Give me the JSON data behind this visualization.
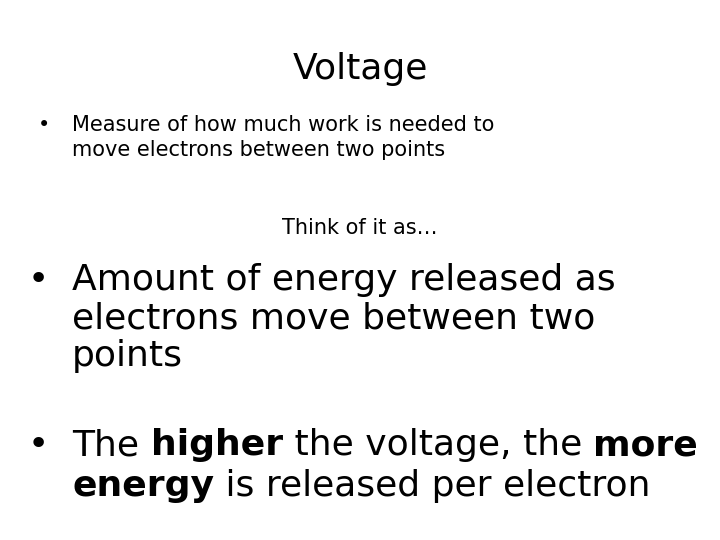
{
  "title": "Voltage",
  "title_fontsize": 26,
  "background_color": "#ffffff",
  "text_color": "#000000",
  "bullet1_text": "Measure of how much work is needed to\nmove electrons between two points",
  "bullet1_fontsize": 15,
  "think_text": "Think of it as…",
  "think_fontsize": 15,
  "bullet2_text": "Amount of energy released as\nelectrons move between two\npoints",
  "bullet2_fontsize": 26,
  "bullet_char": "•",
  "line1_segs": [
    [
      "The ",
      false
    ],
    [
      "higher",
      true
    ],
    [
      " the voltage, the ",
      false
    ],
    [
      "more",
      true
    ]
  ],
  "line2_segs": [
    [
      "energy",
      true
    ],
    [
      " is released per electron",
      false
    ]
  ],
  "b3_fontsize": 26
}
